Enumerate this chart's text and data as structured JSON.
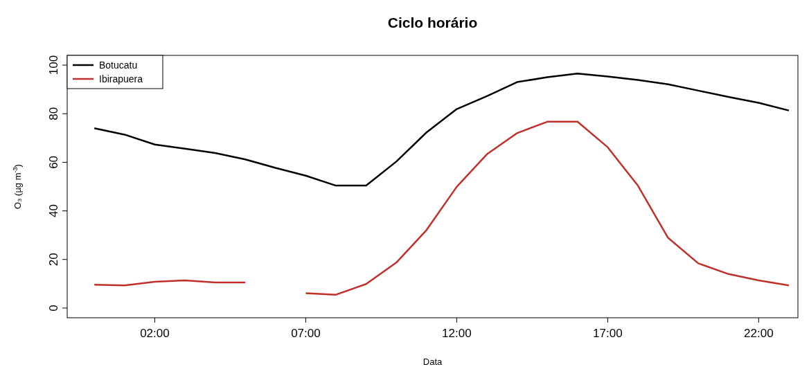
{
  "chart_data": {
    "type": "line",
    "title": "Ciclo horário",
    "xlabel": "Data",
    "ylabel": "O₃ (µg m$^{-3}$)",
    "x": [
      0,
      1,
      2,
      3,
      4,
      5,
      6,
      7,
      8,
      9,
      10,
      11,
      12,
      13,
      14,
      15,
      16,
      17,
      18,
      19,
      20,
      21,
      22,
      23
    ],
    "series": [
      {
        "name": "Botucatu",
        "color": "#000000",
        "values": [
          74,
          71.4,
          67.3,
          65.6,
          63.8,
          61.2,
          57.7,
          54.5,
          50.4,
          50.4,
          60.3,
          72.3,
          81.9,
          87.2,
          93,
          95,
          96.5,
          95.3,
          93.9,
          92.1,
          89.5,
          86.9,
          84.5,
          81.3
        ]
      },
      {
        "name": "Ibirapuera",
        "color": "#c0302a",
        "values": [
          9.6,
          9.3,
          10.8,
          11.4,
          10.5,
          10.5,
          null,
          6.1,
          5.5,
          9.9,
          18.7,
          32.1,
          49.9,
          63.3,
          72,
          76.7,
          76.7,
          66.2,
          50.4,
          28.9,
          18.4,
          14,
          11.4,
          9.3
        ]
      }
    ],
    "xlim": [
      -0.9,
      23.3
    ],
    "xticks": [
      {
        "value": 2,
        "label": "02:00"
      },
      {
        "value": 7,
        "label": "07:00"
      },
      {
        "value": 12,
        "label": "12:00"
      },
      {
        "value": 17,
        "label": "17:00"
      },
      {
        "value": 22,
        "label": "22:00"
      }
    ],
    "ylim": [
      -4,
      104
    ],
    "yticks": [
      0,
      20,
      40,
      60,
      80,
      100
    ],
    "grid": false,
    "legend": "top left",
    "line_style": "solid"
  }
}
